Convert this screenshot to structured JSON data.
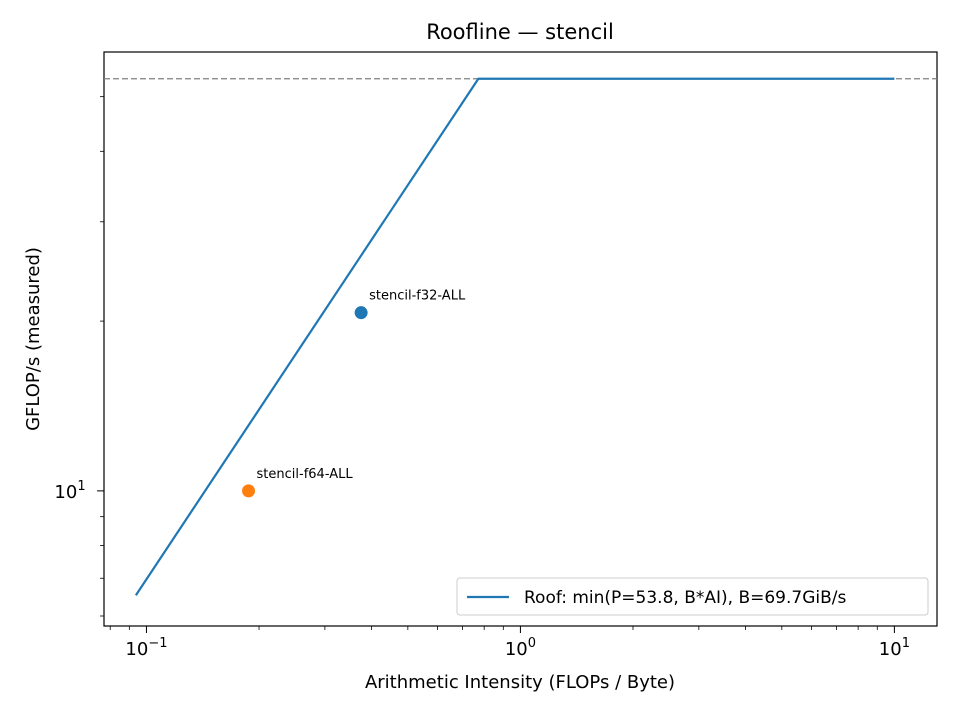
{
  "chart_data": {
    "type": "scatter",
    "title": "Roofline — stencil",
    "xlabel": "Arithmetic Intensity (FLOPs / Byte)",
    "ylabel": "GFLOP/s (measured)",
    "xscale": "log",
    "yscale": "log",
    "xlim": [
      0.077,
      13.0
    ],
    "ylim": [
      5.76,
      60.0
    ],
    "x_ticks": [
      {
        "value": 0.1,
        "base": "10",
        "exp": "−1"
      },
      {
        "value": 1,
        "base": "10",
        "exp": "0"
      },
      {
        "value": 10,
        "base": "10",
        "exp": "1"
      }
    ],
    "y_ticks": [
      {
        "value": 10,
        "base": "10",
        "exp": "1"
      }
    ],
    "roof": {
      "label": "Roof: min(P=53.8, B*AI), B=69.7GiB/s",
      "color": "#1f77b4",
      "peak": 53.8,
      "bandwidth_gflops_per_ai": 69.7,
      "x_start": 0.0937,
      "x_end": 10
    },
    "peak_line": {
      "y": 53.8,
      "color": "#808080",
      "style": "dashed"
    },
    "points": [
      {
        "label": "stencil-f32-ALL",
        "x": 0.375,
        "y": 20.7,
        "color": "#1f77b4"
      },
      {
        "label": "stencil-f64-ALL",
        "x": 0.1875,
        "y": 10.0,
        "color": "#ff7f0e"
      }
    ],
    "legend_position": "lower-right",
    "grid": false
  }
}
